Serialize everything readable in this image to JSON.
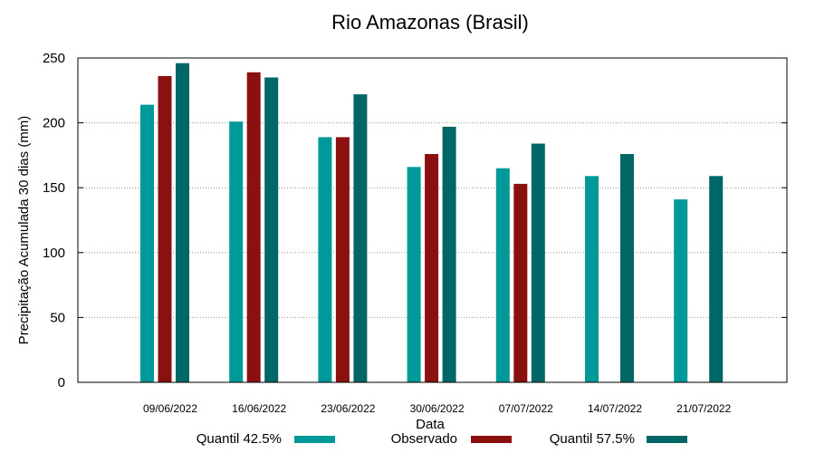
{
  "chart_data": {
    "type": "bar",
    "title": "Rio Amazonas (Brasil)",
    "xlabel": "Data",
    "ylabel": "Precipitação Acumulada 30 dias (mm)",
    "ylim": [
      0,
      250
    ],
    "yticks": [
      0,
      50,
      100,
      150,
      200,
      250
    ],
    "grid": "y-dotted",
    "legend_position": "bottom",
    "categories": [
      "09/06/2022",
      "16/06/2022",
      "23/06/2022",
      "30/06/2022",
      "07/07/2022",
      "14/07/2022",
      "21/07/2022"
    ],
    "series": [
      {
        "name": "Quantil 42.5%",
        "color": "#009999",
        "values": [
          214,
          201,
          189,
          166,
          165,
          159,
          141
        ]
      },
      {
        "name": "Observado",
        "color": "#8b1010",
        "values": [
          236,
          239,
          189,
          176,
          153,
          null,
          null
        ]
      },
      {
        "name": "Quantil 57.5%",
        "color": "#006666",
        "values": [
          246,
          235,
          222,
          197,
          184,
          176,
          159
        ]
      }
    ]
  }
}
